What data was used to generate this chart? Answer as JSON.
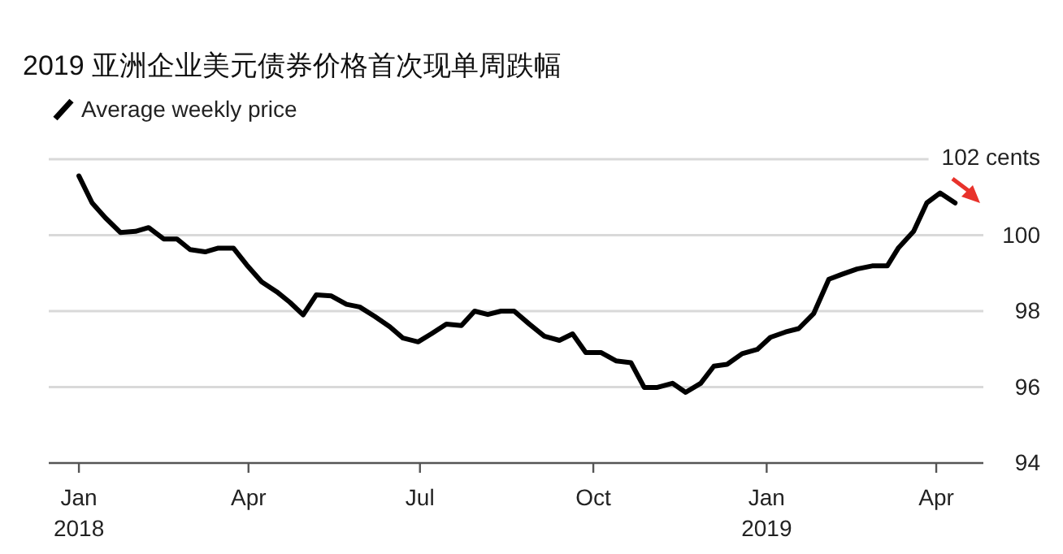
{
  "chart_data": {
    "type": "line",
    "title": "2019  亚洲企业美元债券价格首次现单周跌幅",
    "legend": "top left",
    "grid": "y",
    "line_style": "solid",
    "marker": "none",
    "xlim": [
      "2017-12-16",
      "2019-04-26"
    ],
    "xticks": [
      {
        "value": "2018-01-01",
        "label": "Jan\n2018"
      },
      {
        "value": "2018-04-01",
        "label": "Apr"
      },
      {
        "value": "2018-07-01",
        "label": "Jul"
      },
      {
        "value": "2018-10-01",
        "label": "Oct"
      },
      {
        "value": "2019-01-01",
        "label": "Jan\n2019"
      },
      {
        "value": "2019-04-01",
        "label": "Apr"
      }
    ],
    "ylim": [
      94,
      102
    ],
    "yticks": [
      94,
      96,
      98,
      100,
      {
        "value": 102,
        "label": "102 cents"
      }
    ],
    "series": [
      {
        "name": "Average weekly price",
        "color": "#000000",
        "x": [
          "2018-01-01",
          "2018-01-08",
          "2018-01-15",
          "2018-01-23",
          "2018-01-31",
          "2018-02-07",
          "2018-02-15",
          "2018-02-22",
          "2018-03-01",
          "2018-03-09",
          "2018-03-16",
          "2018-03-24",
          "2018-03-31",
          "2018-04-08",
          "2018-04-16",
          "2018-04-23",
          "2018-04-30",
          "2018-05-07",
          "2018-05-15",
          "2018-05-23",
          "2018-05-30",
          "2018-06-07",
          "2018-06-15",
          "2018-06-22",
          "2018-06-30",
          "2018-07-07",
          "2018-07-15",
          "2018-07-23",
          "2018-07-30",
          "2018-08-06",
          "2018-08-13",
          "2018-08-20",
          "2018-08-28",
          "2018-09-05",
          "2018-09-13",
          "2018-09-20",
          "2018-09-27",
          "2018-10-05",
          "2018-10-13",
          "2018-10-21",
          "2018-10-28",
          "2018-11-04",
          "2018-11-12",
          "2018-11-19",
          "2018-11-27",
          "2018-12-04",
          "2018-12-11",
          "2018-12-19",
          "2018-12-27",
          "2019-01-03",
          "2019-01-11",
          "2019-01-18",
          "2019-01-26",
          "2019-02-03",
          "2019-02-10",
          "2019-02-18",
          "2019-02-26",
          "2019-03-06",
          "2019-03-12",
          "2019-03-20",
          "2019-03-27",
          "2019-04-03",
          "2019-04-11"
        ],
        "values": [
          101.56,
          100.85,
          100.46,
          100.07,
          100.1,
          100.2,
          99.9,
          99.9,
          99.62,
          99.56,
          99.66,
          99.66,
          99.22,
          98.77,
          98.51,
          98.23,
          97.9,
          98.43,
          98.4,
          98.18,
          98.11,
          97.86,
          97.59,
          97.29,
          97.19,
          97.4,
          97.66,
          97.62,
          98.0,
          97.91,
          98.0,
          98.0,
          97.66,
          97.34,
          97.23,
          97.4,
          96.91,
          96.91,
          96.69,
          96.64,
          95.99,
          95.99,
          96.1,
          95.86,
          96.1,
          96.55,
          96.6,
          96.88,
          96.99,
          97.31,
          97.45,
          97.54,
          97.94,
          98.84,
          98.97,
          99.11,
          99.19,
          99.19,
          99.67,
          100.1,
          100.85,
          101.11,
          100.85
        ]
      }
    ]
  }
}
